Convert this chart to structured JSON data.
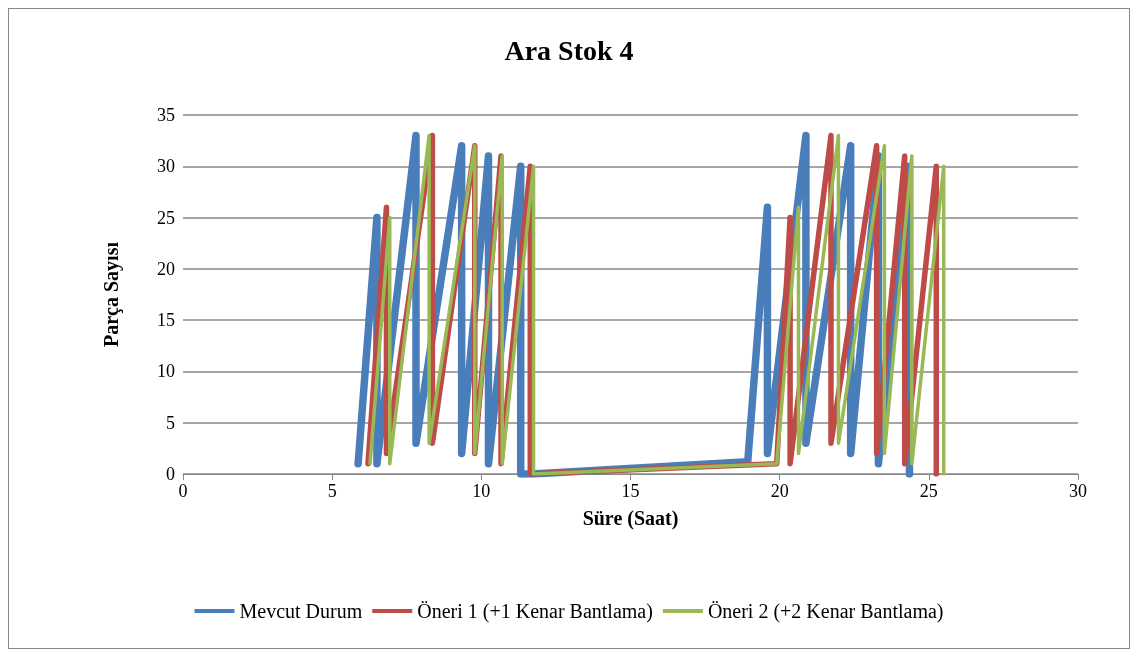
{
  "chart_data": {
    "type": "line",
    "title": "Ara Stok 4",
    "xlabel": "Süre (Saat)",
    "ylabel": "Parça Sayısı",
    "xlim": [
      0,
      30
    ],
    "xticks": [
      0,
      5,
      10,
      15,
      20,
      25,
      30
    ],
    "ylim": [
      0,
      35
    ],
    "yticks": [
      0,
      5,
      10,
      15,
      20,
      25,
      30,
      35
    ],
    "grid": "y",
    "legend": "bottom",
    "marker": "none",
    "line_style": "solid",
    "series": [
      {
        "name": "Mevcut Durum",
        "color": "#4a7ebb",
        "x": [
          5.87,
          6.5,
          6.5,
          7.81,
          7.81,
          9.34,
          9.34,
          10.24,
          10.24,
          11.32,
          11.32,
          11.7,
          18.93,
          19.59,
          19.59,
          20.88,
          20.88,
          22.38,
          22.38,
          23.31,
          23.31,
          24.35,
          24.35
        ],
        "values": [
          1,
          25,
          1,
          33,
          3,
          32,
          2,
          31,
          1,
          30,
          0,
          0,
          1.2,
          26,
          2,
          33,
          3,
          32,
          2,
          31,
          1,
          30,
          0
        ]
      },
      {
        "name": "Öneri 1 (+1 Kenar Bantlama)",
        "color": "#be4b48",
        "x": [
          6.2,
          6.82,
          6.82,
          8.36,
          8.36,
          9.78,
          9.78,
          10.66,
          10.66,
          11.64,
          11.64,
          19.9,
          20.35,
          20.35,
          21.72,
          21.72,
          23.25,
          23.25,
          24.19,
          24.19,
          25.25,
          25.25
        ],
        "values": [
          1,
          26,
          2,
          33,
          3,
          32,
          2,
          31,
          1,
          30,
          0,
          1,
          25,
          1,
          33,
          3,
          32,
          2,
          31,
          1,
          30,
          0
        ]
      },
      {
        "name": "Öneri 2 (+2 Kenar Bantlama)",
        "color": "#98b954",
        "x": [
          6.27,
          6.93,
          6.93,
          8.25,
          8.25,
          9.78,
          9.78,
          10.7,
          10.7,
          11.75,
          11.75,
          19.9,
          20.63,
          20.63,
          21.97,
          21.97,
          23.51,
          23.51,
          24.43,
          24.43,
          25.5,
          25.5
        ],
        "values": [
          1,
          25,
          1,
          33,
          3,
          32,
          2,
          31,
          1,
          30,
          0,
          1,
          26,
          2,
          33,
          3,
          32,
          2,
          31,
          1,
          30,
          0
        ]
      }
    ]
  }
}
